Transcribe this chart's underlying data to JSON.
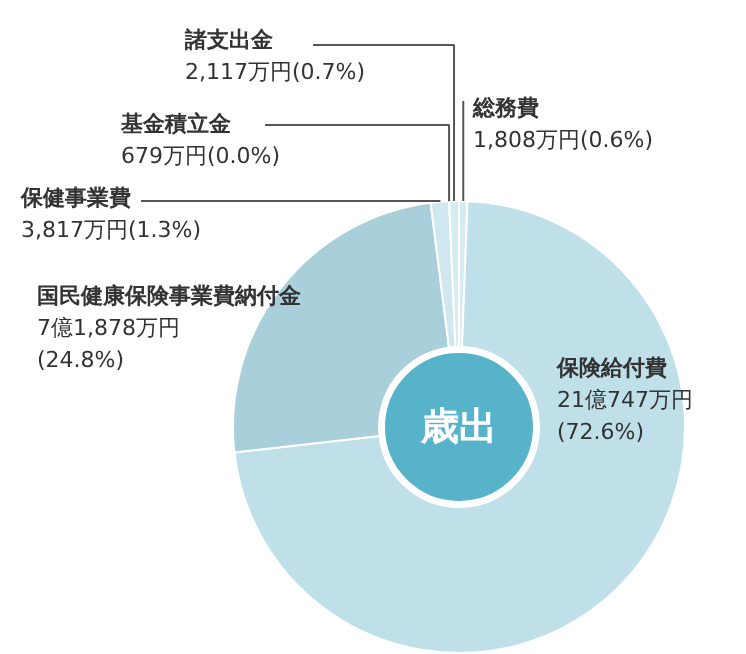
{
  "chart_data": {
    "type": "donut",
    "categories": [
      "総務費",
      "保険給付費",
      "国民健康保険事業費納付金",
      "保健事業費",
      "基金積立金",
      "諸支出金"
    ],
    "values": [
      0.6,
      72.6,
      24.8,
      1.3,
      0.0,
      0.7
    ],
    "colors": [
      "#d6ecf2",
      "#bfe0e8",
      "#a9cfdb",
      "#cfe7ee",
      "#e3f2f6",
      "#d6ecf2"
    ],
    "value_labels": [
      "1,808万円(0.6%)",
      "21億747万円\n(72.6%)",
      "7億1,878万円\n(24.8%)",
      "3,817万円(1.3%)",
      "679万円(0.0%)",
      "2,117万円(0.7%)"
    ],
    "annotations": [
      "歳出"
    ]
  }
}
